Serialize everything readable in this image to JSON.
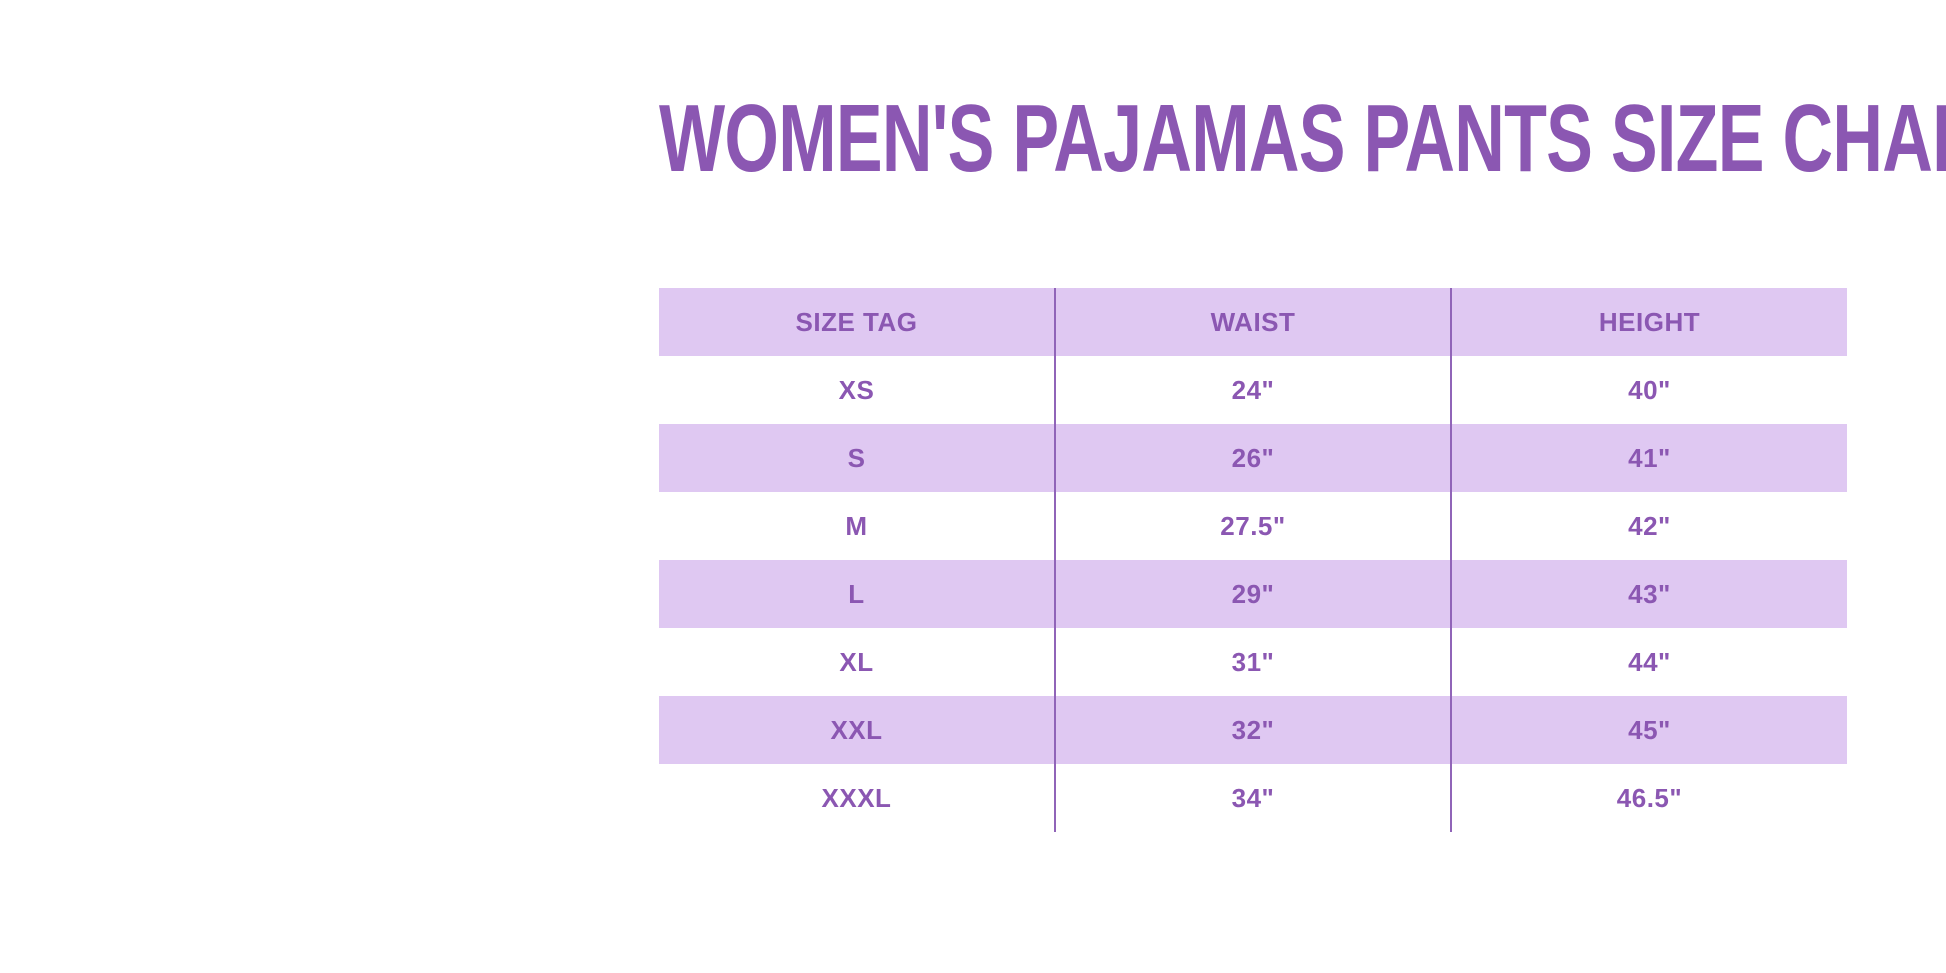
{
  "page": {
    "title": "WOMEN'S PAJAMAS PANTS SIZE CHART"
  },
  "colors": {
    "accent_purple": "#8b57b2",
    "row_lavender": "#dfc8f2",
    "divider_purple": "#9064b8",
    "background": "#ffffff"
  },
  "size_chart": {
    "columns": [
      "SIZE TAG",
      "WAIST",
      "HEIGHT"
    ],
    "rows": [
      {
        "size_tag": "XS",
        "waist": "24\"",
        "height": "40\""
      },
      {
        "size_tag": "S",
        "waist": "26\"",
        "height": "41\""
      },
      {
        "size_tag": "M",
        "waist": "27.5\"",
        "height": "42\""
      },
      {
        "size_tag": "L",
        "waist": "29\"",
        "height": "43\""
      },
      {
        "size_tag": "XL",
        "waist": "31\"",
        "height": "44\""
      },
      {
        "size_tag": "XXL",
        "waist": "32\"",
        "height": "45\""
      },
      {
        "size_tag": "XXXL",
        "waist": "34\"",
        "height": "46.5\""
      }
    ]
  },
  "chart_data": {
    "type": "table",
    "title": "WOMEN'S PAJAMAS PANTS SIZE CHART",
    "columns": [
      "SIZE TAG",
      "WAIST",
      "HEIGHT"
    ],
    "rows": [
      [
        "XS",
        "24\"",
        "40\""
      ],
      [
        "S",
        "26\"",
        "41\""
      ],
      [
        "M",
        "27.5\"",
        "42\""
      ],
      [
        "L",
        "29\"",
        "43\""
      ],
      [
        "XL",
        "31\"",
        "44\""
      ],
      [
        "XXL",
        "32\"",
        "45\""
      ],
      [
        "XXXL",
        "34\"",
        "46.5\""
      ]
    ],
    "layout": {
      "zebra_striping": "header and alternating rows lavender, others white",
      "gridlines": "two vertical column dividers only, no horizontal borders"
    }
  }
}
